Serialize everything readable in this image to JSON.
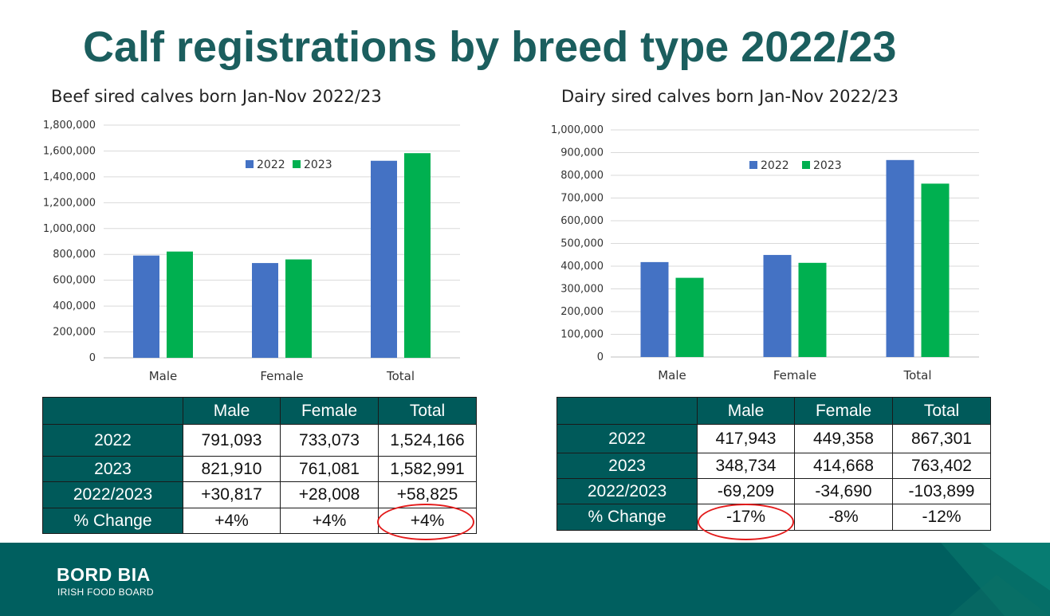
{
  "title": "Calf registrations by breed type 2022/23",
  "colors": {
    "series_2022": "#4472c4",
    "series_2023": "#00b050",
    "header_fill": "#005a5a",
    "footer": "#005f5f",
    "highlight_ring": "#e31b1b"
  },
  "chart_data": [
    {
      "type": "bar",
      "title": "Beef sired calves born Jan-Nov 2022/23",
      "categories": [
        "Male",
        "Female",
        "Total"
      ],
      "series": [
        {
          "name": "2022",
          "values": [
            791093,
            733073,
            1524166
          ]
        },
        {
          "name": "2023",
          "values": [
            821910,
            761081,
            1582991
          ]
        }
      ],
      "ylim": [
        0,
        1800000
      ],
      "yticks": [
        0,
        200000,
        400000,
        600000,
        800000,
        1000000,
        1200000,
        1400000,
        1600000,
        1800000
      ],
      "ytick_labels": [
        "0",
        "200,000",
        "400,000",
        "600,000",
        "800,000",
        "1,000,000",
        "1,200,000",
        "1,400,000",
        "1,600,000",
        "1,800,000"
      ],
      "grid": true,
      "legend": "top-center"
    },
    {
      "type": "bar",
      "title": "Dairy sired calves born Jan-Nov 2022/23",
      "categories": [
        "Male",
        "Female",
        "Total"
      ],
      "series": [
        {
          "name": "2022",
          "values": [
            417943,
            449358,
            867301
          ]
        },
        {
          "name": "2023",
          "values": [
            348734,
            414668,
            763402
          ]
        }
      ],
      "ylim": [
        0,
        1000000
      ],
      "yticks": [
        0,
        100000,
        200000,
        300000,
        400000,
        500000,
        600000,
        700000,
        800000,
        900000,
        1000000
      ],
      "ytick_labels": [
        "0",
        "100,000",
        "200,000",
        "300,000",
        "400,000",
        "500,000",
        "600,000",
        "700,000",
        "800,000",
        "900,000",
        "1,000,000"
      ],
      "grid": true,
      "legend": "top-center"
    }
  ],
  "beef_table": {
    "columns": [
      "",
      "Male",
      "Female",
      "Total"
    ],
    "rows": [
      {
        "label": "2022",
        "cells": [
          "791,093",
          "733,073",
          "1,524,166"
        ]
      },
      {
        "label": "2023",
        "cells": [
          "821,910",
          "761,081",
          "1,582,991"
        ]
      },
      {
        "label": "2022/2023",
        "cells": [
          "+30,817",
          "+28,008",
          "+58,825"
        ]
      },
      {
        "label": "% Change",
        "cells": [
          "+4%",
          "+4%",
          "+4%"
        ]
      }
    ]
  },
  "dairy_table": {
    "columns": [
      "",
      "Male",
      "Female",
      "Total"
    ],
    "rows": [
      {
        "label": "2022",
        "cells": [
          "417,943",
          "449,358",
          "867,301"
        ]
      },
      {
        "label": "2023",
        "cells": [
          "348,734",
          "414,668",
          "763,402"
        ]
      },
      {
        "label": "2022/2023",
        "cells": [
          "-69,209",
          "-34,690",
          "-103,899"
        ]
      },
      {
        "label": "% Change",
        "cells": [
          "-17%",
          "-8%",
          "-12%"
        ]
      }
    ]
  },
  "footer": {
    "logo_main": "BORD BIA",
    "logo_sub": "IRISH FOOD BOARD"
  }
}
